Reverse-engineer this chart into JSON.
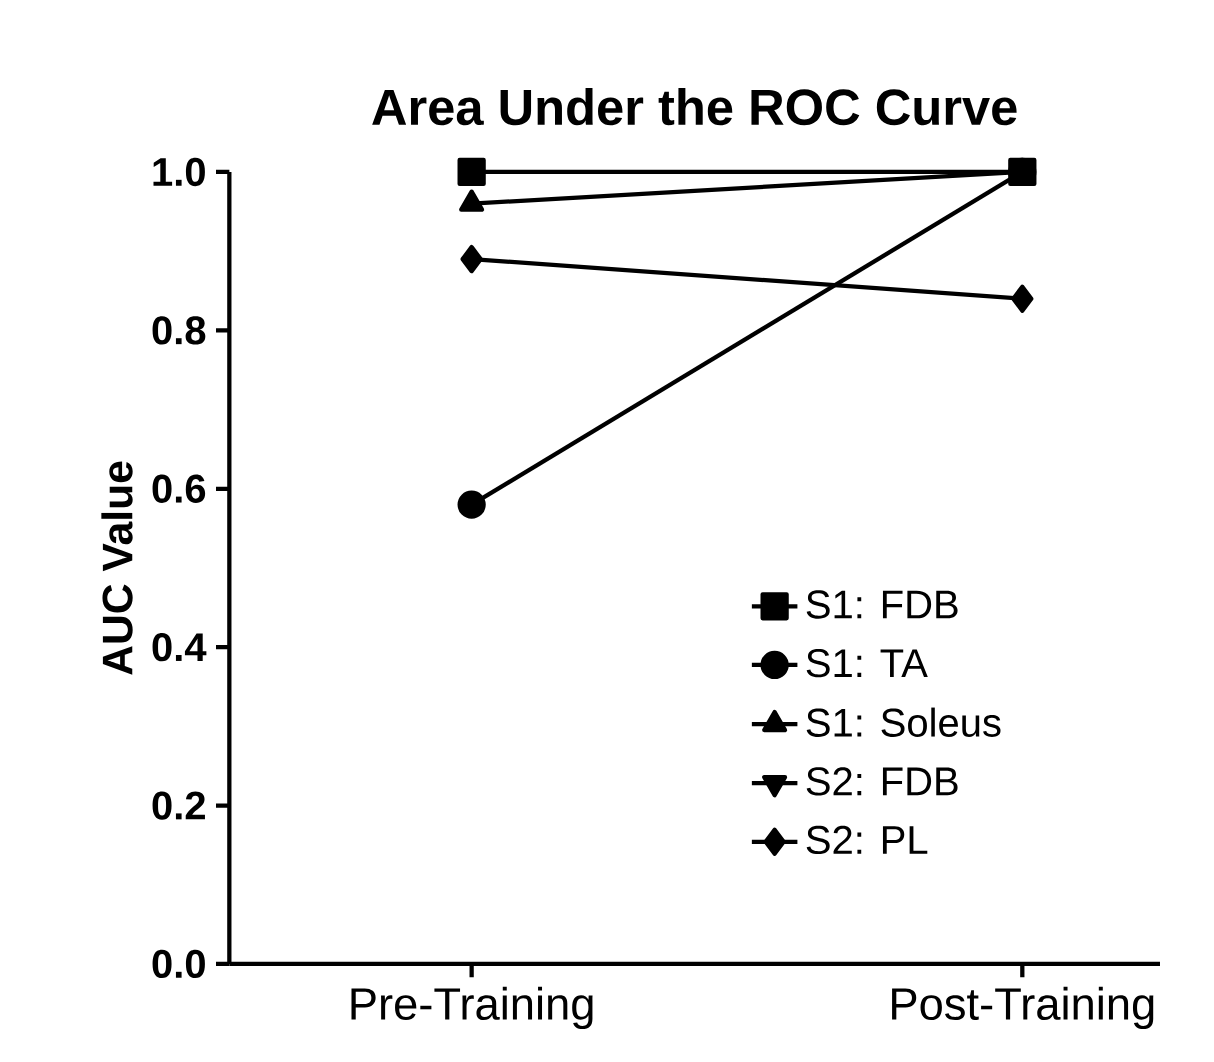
{
  "chart_data": {
    "type": "line",
    "title": "Area Under the ROC Curve",
    "ylabel": "AUC Value",
    "categories": [
      "Pre-Training",
      "Post-Training"
    ],
    "series": [
      {
        "name": "S1: FDB",
        "color": "#000000",
        "marker": "square",
        "values": [
          1.0,
          1.0
        ]
      },
      {
        "name": "S1: TA",
        "color": "#000000",
        "marker": "circle",
        "values": [
          0.58,
          1.0
        ]
      },
      {
        "name": "S1: Soleus",
        "color": "#000000",
        "marker": "triangle",
        "values": [
          0.96,
          1.0
        ]
      },
      {
        "name": "S2: FDB",
        "color": "#000000",
        "marker": "triangle down",
        "values": [
          null,
          null
        ]
      },
      {
        "name": "S2: PL",
        "color": "#000000",
        "marker": "diamond",
        "values": [
          0.89,
          0.84
        ]
      }
    ],
    "ylim": [
      0,
      1.0
    ],
    "yticks": [
      {
        "value": 0,
        "label": "0.0"
      },
      {
        "value": 0.2,
        "label": "0.2"
      },
      {
        "value": 0.4,
        "label": "0.4"
      },
      {
        "value": 0.6,
        "label": "0.6"
      },
      {
        "value": 0.8,
        "label": "0.8"
      },
      {
        "value": 1.0,
        "label": "1.0"
      }
    ],
    "grid": false,
    "legend": "right",
    "line_style": "solid"
  }
}
